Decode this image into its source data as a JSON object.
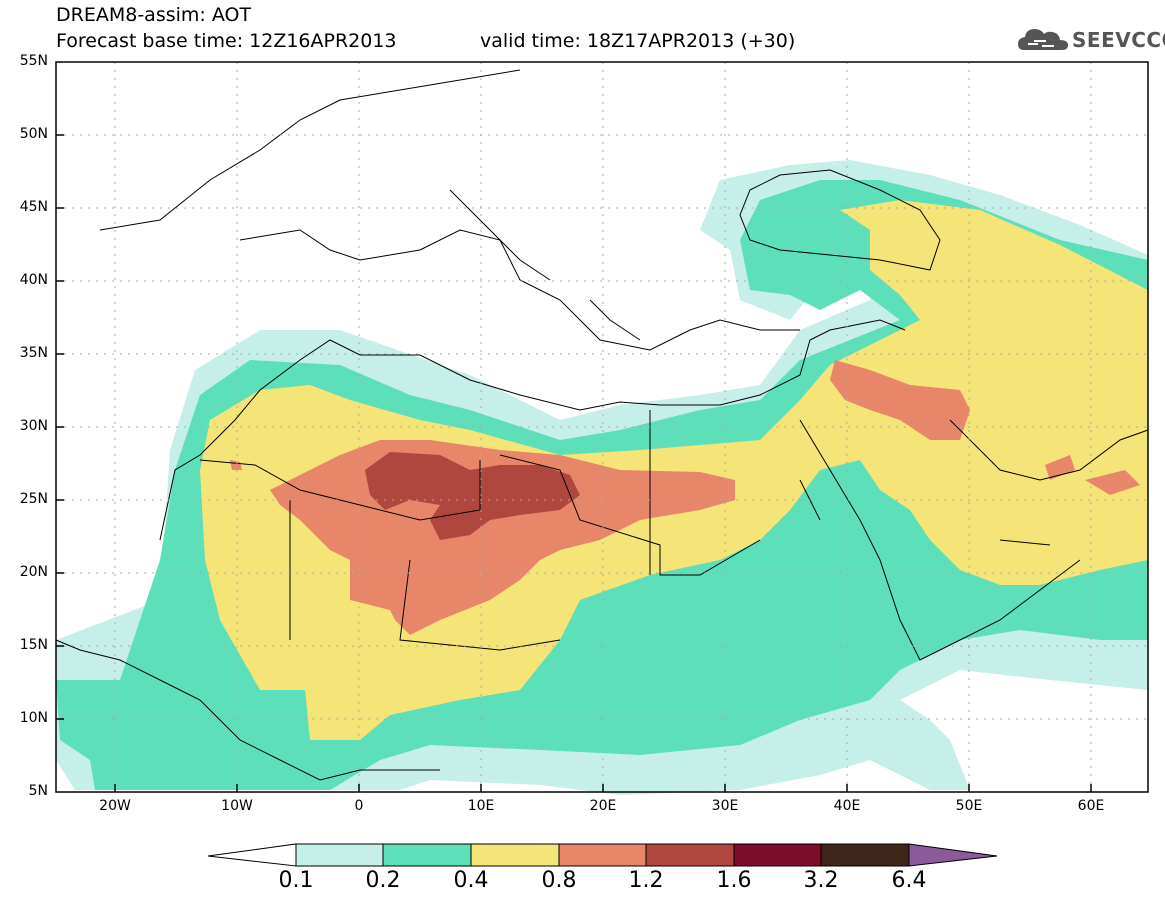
{
  "header": {
    "title_line1": "DREAM8-assim: AOT",
    "title_line2": "Forecast base time: 12Z16APR2013",
    "valid_time": "valid time: 18Z17APR2013 (+30)",
    "logo_text": "SEEVCCC"
  },
  "map": {
    "lat_labels": [
      "55N",
      "50N",
      "45N",
      "40N",
      "35N",
      "30N",
      "25N",
      "20N",
      "15N",
      "10N",
      "5N"
    ],
    "lon_labels": [
      "20W",
      "10W",
      "0",
      "10E",
      "20E",
      "30E",
      "40E",
      "50E",
      "60E"
    ]
  },
  "colorbar": {
    "labels": [
      "0.1",
      "0.2",
      "0.4",
      "0.8",
      "1.2",
      "1.6",
      "3.2",
      "6.4"
    ],
    "colors": [
      "#ffffff",
      "#c6efe9",
      "#5ddfb9",
      "#f5e478",
      "#e8866a",
      "#b0473f",
      "#7b0d2a",
      "#40261a",
      "#8a5a9b"
    ]
  },
  "contour_colors": {
    "c01": "#c6efe9",
    "c02": "#5ddfb9",
    "c04": "#f5e478",
    "c08": "#e8866a",
    "c12": "#b0473f"
  }
}
